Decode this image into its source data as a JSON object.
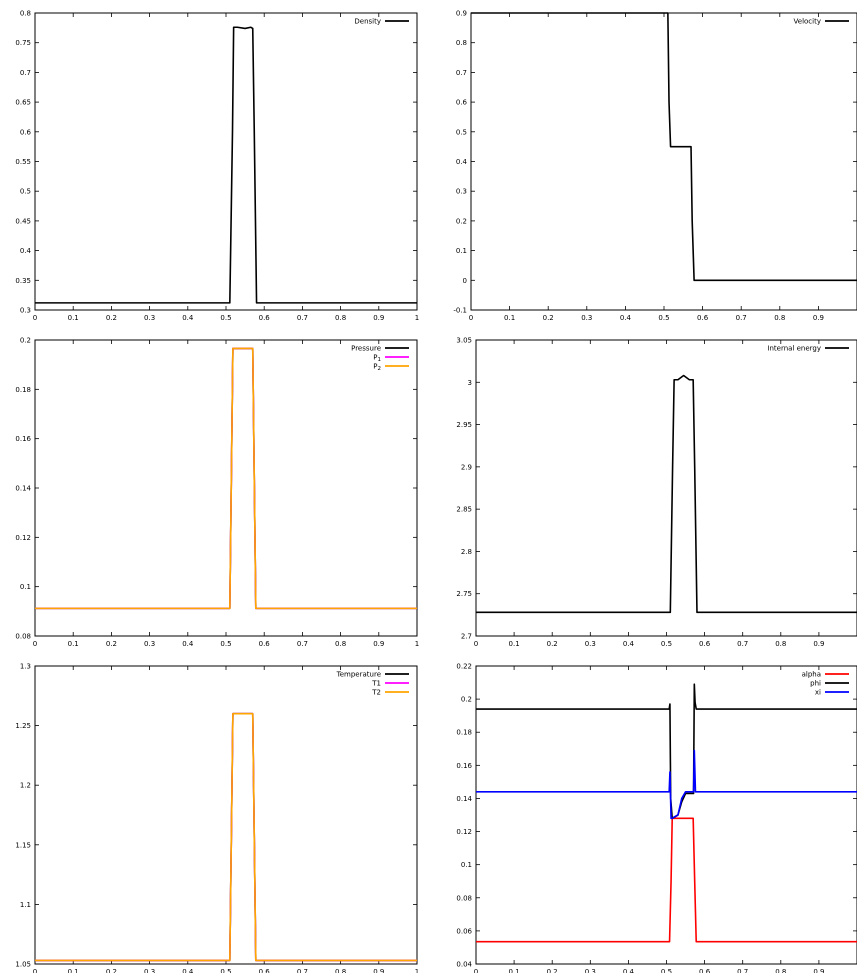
{
  "chart_data": [
    {
      "type": "line",
      "xlim": [
        0,
        1
      ],
      "ylim": [
        0.3,
        0.8
      ],
      "xticks": [
        "0",
        "0.1",
        "0.2",
        "0.3",
        "0.4",
        "0.5",
        "0.6",
        "0.7",
        "0.8",
        "0.9",
        "1"
      ],
      "yticks": [
        "0.3",
        "0.35",
        "0.4",
        "0.45",
        "0.5",
        "0.55",
        "0.6",
        "0.65",
        "0.7",
        "0.75",
        "0.8"
      ],
      "legend_position": "top-right",
      "series": [
        {
          "name": "Density",
          "color": "#000000",
          "x": [
            0,
            0.51,
            0.517,
            0.52,
            0.53,
            0.55,
            0.565,
            0.57,
            0.574,
            0.58,
            1
          ],
          "y": [
            0.312,
            0.312,
            0.6,
            0.776,
            0.776,
            0.774,
            0.776,
            0.774,
            0.6,
            0.312,
            0.312
          ]
        }
      ]
    },
    {
      "type": "line",
      "xlim": [
        0,
        1
      ],
      "ylim": [
        -0.1,
        0.9
      ],
      "xticks": [
        "0",
        "0.1",
        "0.2",
        "0.3",
        "0.4",
        "0.5",
        "0.6",
        "0.7",
        "0.8",
        "0.9"
      ],
      "yticks": [
        "-0.1",
        "0",
        "0.1",
        "0.2",
        "0.3",
        "0.4",
        "0.5",
        "0.6",
        "0.7",
        "0.8",
        "0.9"
      ],
      "legend_position": "top-right",
      "series": [
        {
          "name": "Velocity",
          "color": "#000000",
          "x": [
            0,
            0.51,
            0.513,
            0.517,
            0.57,
            0.573,
            0.578,
            1
          ],
          "y": [
            0.9,
            0.9,
            0.6,
            0.45,
            0.45,
            0.2,
            0,
            0
          ]
        }
      ]
    },
    {
      "type": "line",
      "xlim": [
        0,
        1
      ],
      "ylim": [
        0.08,
        0.2
      ],
      "xticks": [
        "0",
        "0.1",
        "0.2",
        "0.3",
        "0.4",
        "0.5",
        "0.6",
        "0.7",
        "0.8",
        "0.9",
        "1"
      ],
      "yticks": [
        "0.08",
        "0.1",
        "0.12",
        "0.14",
        "0.16",
        "0.18",
        "0.2"
      ],
      "legend_position": "top-right",
      "series": [
        {
          "name": "Pressure",
          "color": "#000000",
          "x": [
            0,
            0.51,
            0.518,
            0.57,
            0.578,
            1
          ],
          "y": [
            0.0912,
            0.0912,
            0.1966,
            0.1966,
            0.0912,
            0.0912
          ]
        },
        {
          "name": "P",
          "name_subscript": "1",
          "color": "#ff00ff",
          "x": [
            0,
            0.51,
            0.518,
            0.57,
            0.578,
            1
          ],
          "y": [
            0.0912,
            0.0912,
            0.1966,
            0.1966,
            0.0912,
            0.0912
          ]
        },
        {
          "name": "P",
          "name_subscript": "2",
          "color": "#ffa500",
          "x": [
            0,
            0.51,
            0.518,
            0.57,
            0.578,
            1
          ],
          "y": [
            0.0912,
            0.0912,
            0.1966,
            0.1966,
            0.0912,
            0.0912
          ]
        }
      ]
    },
    {
      "type": "line",
      "xlim": [
        0,
        1
      ],
      "ylim": [
        2.7,
        3.05
      ],
      "xticks": [
        "0",
        "0.1",
        "0.2",
        "0.3",
        "0.4",
        "0.5",
        "0.6",
        "0.7",
        "0.8",
        "0.9"
      ],
      "yticks": [
        "2.7",
        "2.75",
        "2.8",
        "2.85",
        "2.9",
        "2.95",
        "3",
        "3.05"
      ],
      "legend_position": "top-right",
      "series": [
        {
          "name": "Internal energy",
          "color": "#000000",
          "x": [
            0,
            0.51,
            0.516,
            0.52,
            0.53,
            0.545,
            0.56,
            0.57,
            0.574,
            0.58,
            1
          ],
          "y": [
            2.728,
            2.728,
            2.9,
            3.003,
            3.003,
            3.008,
            3.003,
            3.003,
            2.9,
            2.728,
            2.728
          ]
        }
      ]
    },
    {
      "type": "line",
      "xlim": [
        0,
        1
      ],
      "ylim": [
        1.05,
        1.3
      ],
      "xticks": [
        "0",
        "0.1",
        "0.2",
        "0.3",
        "0.4",
        "0.5",
        "0.6",
        "0.7",
        "0.8",
        "0.9",
        "1"
      ],
      "yticks": [
        "1.05",
        "1.1",
        "1.15",
        "1.2",
        "1.25",
        "1.3"
      ],
      "legend_position": "top-right",
      "series": [
        {
          "name": "Temperature",
          "color": "#000000",
          "x": [
            0,
            0.51,
            0.518,
            0.57,
            0.578,
            1
          ],
          "y": [
            1.053,
            1.053,
            1.26,
            1.26,
            1.053,
            1.053
          ]
        },
        {
          "name": "T1",
          "color": "#ff00ff",
          "x": [
            0,
            0.51,
            0.518,
            0.57,
            0.578,
            1
          ],
          "y": [
            1.053,
            1.053,
            1.26,
            1.26,
            1.053,
            1.053
          ]
        },
        {
          "name": "T2",
          "color": "#ffa500",
          "x": [
            0,
            0.51,
            0.518,
            0.57,
            0.578,
            1
          ],
          "y": [
            1.053,
            1.053,
            1.26,
            1.26,
            1.053,
            1.053
          ]
        }
      ]
    },
    {
      "type": "line",
      "xlim": [
        0,
        1
      ],
      "ylim": [
        0.04,
        0.22
      ],
      "xticks": [
        "0",
        "0.1",
        "0.2",
        "0.3",
        "0.4",
        "0.5",
        "0.6",
        "0.7",
        "0.8",
        "0.9"
      ],
      "yticks": [
        "0.04",
        "0.06",
        "0.08",
        "0.1",
        "0.12",
        "0.14",
        "0.16",
        "0.18",
        "0.2",
        "0.22"
      ],
      "legend_position": "top-right",
      "series": [
        {
          "name": "alpha",
          "color": "#ff0000",
          "x": [
            0,
            0.508,
            0.512,
            0.515,
            0.57,
            0.574,
            0.578,
            1
          ],
          "y": [
            0.0535,
            0.0535,
            0.09,
            0.128,
            0.128,
            0.09,
            0.0535,
            0.0535
          ]
        },
        {
          "name": "phi",
          "color": "#000000",
          "x": [
            0,
            0.507,
            0.509,
            0.511,
            0.515,
            0.53,
            0.54,
            0.55,
            0.56,
            0.571,
            0.573,
            0.575,
            0.578,
            1
          ],
          "y": [
            0.194,
            0.194,
            0.197,
            0.14,
            0.128,
            0.13,
            0.138,
            0.143,
            0.143,
            0.143,
            0.209,
            0.198,
            0.194,
            0.194
          ]
        },
        {
          "name": "xi",
          "color": "#0000ff",
          "x": [
            0,
            0.507,
            0.509,
            0.512,
            0.515,
            0.53,
            0.54,
            0.55,
            0.56,
            0.571,
            0.573,
            0.576,
            1
          ],
          "y": [
            0.144,
            0.144,
            0.156,
            0.128,
            0.128,
            0.13,
            0.14,
            0.144,
            0.144,
            0.144,
            0.169,
            0.144,
            0.144
          ]
        }
      ]
    }
  ]
}
